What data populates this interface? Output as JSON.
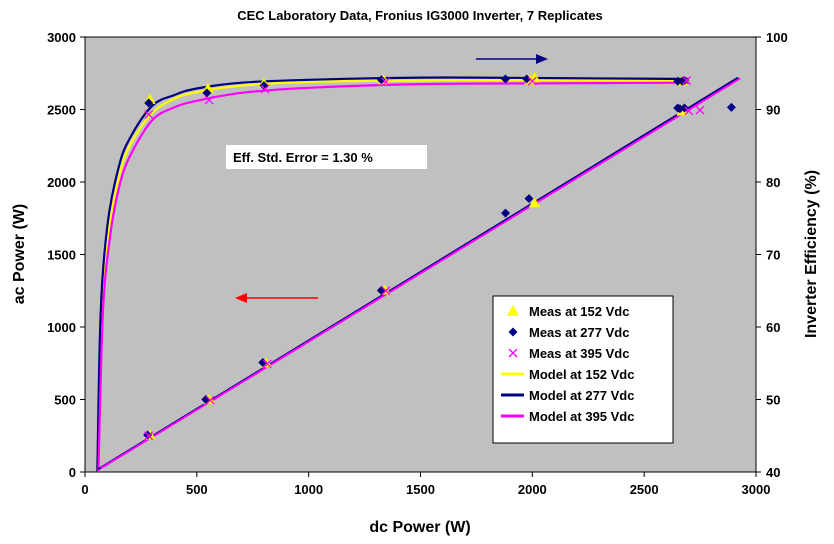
{
  "chart_data": {
    "type": "scatter",
    "title": "CEC Laboratory Data, Fronius IG3000 Inverter, 7 Replicates",
    "xlabel": "dc Power (W)",
    "ylabel": "ac Power (W)",
    "y2label": "Inverter Efficiency (%)",
    "xlim": [
      0,
      3000
    ],
    "ylim": [
      0,
      3000
    ],
    "y2lim": [
      40,
      100
    ],
    "xticks": [
      "0",
      "500",
      "1000",
      "1500",
      "2000",
      "2500",
      "3000"
    ],
    "yticks": [
      "0",
      "500",
      "1000",
      "1500",
      "2000",
      "2500",
      "3000"
    ],
    "y2ticks": [
      "40",
      "50",
      "60",
      "70",
      "80",
      "90",
      "100"
    ],
    "grid": false,
    "background": "#c0c0c0",
    "annotation": "Eff. Std. Error = 1.30 %",
    "legend_position": "bottom-right",
    "series": [
      {
        "name": "Meas at 152 Vdc",
        "kind": "marker",
        "marker": "triangle",
        "color": "#ffff00",
        "ac_power": [
          [
            290,
            255
          ],
          [
            555,
            500
          ],
          [
            810,
            752
          ],
          [
            1340,
            1255
          ],
          [
            2010,
            1855
          ],
          [
            2670,
            2490
          ]
        ],
        "efficiency": [
          [
            290,
            91.4
          ],
          [
            550,
            92.9
          ],
          [
            800,
            93.6
          ],
          [
            1335,
            94.1
          ],
          [
            1990,
            94.1
          ],
          [
            2010,
            94.4
          ],
          [
            2670,
            93.9
          ]
        ]
      },
      {
        "name": "Meas at 277 Vdc",
        "kind": "marker",
        "marker": "diamond",
        "color": "#000080",
        "ac_power": [
          [
            280,
            255
          ],
          [
            540,
            500
          ],
          [
            795,
            755
          ],
          [
            1325,
            1252
          ],
          [
            1880,
            1785
          ],
          [
            1985,
            1885
          ],
          [
            2650,
            2510
          ],
          [
            2660,
            2505
          ],
          [
            2680,
            2510
          ],
          [
            2890,
            2515
          ]
        ],
        "efficiency": [
          [
            285,
            90.9
          ],
          [
            545,
            92.3
          ],
          [
            800,
            93.3
          ],
          [
            1325,
            94.1
          ],
          [
            1880,
            94.2
          ],
          [
            1975,
            94.2
          ],
          [
            2650,
            93.9
          ],
          [
            2670,
            93.9
          ],
          [
            2680,
            94.0
          ]
        ]
      },
      {
        "name": "Meas at 395 Vdc",
        "kind": "marker",
        "marker": "x",
        "color": "#ff00ff",
        "ac_power": [
          [
            285,
            250
          ],
          [
            560,
            495
          ],
          [
            815,
            745
          ],
          [
            1345,
            1250
          ],
          [
            2700,
            2490
          ],
          [
            2750,
            2495
          ]
        ],
        "efficiency": [
          [
            285,
            89.3
          ],
          [
            555,
            91.3
          ],
          [
            805,
            92.8
          ],
          [
            1345,
            93.8
          ],
          [
            2000,
            93.9
          ],
          [
            2690,
            94.0
          ]
        ]
      },
      {
        "name": "Model at 152 Vdc",
        "kind": "line",
        "color": "#ffff00",
        "efficiency": [
          [
            55,
            40
          ],
          [
            70,
            60
          ],
          [
            100,
            72
          ],
          [
            150,
            80.5
          ],
          [
            200,
            85
          ],
          [
            300,
            89.5
          ],
          [
            400,
            91.5
          ],
          [
            500,
            92.4
          ],
          [
            700,
            93.3
          ],
          [
            1000,
            93.8
          ],
          [
            1500,
            94.0
          ],
          [
            2000,
            94.05
          ],
          [
            2700,
            94.0
          ]
        ]
      },
      {
        "name": "Model at 277 Vdc",
        "kind": "line",
        "color": "#000080",
        "ac_power": [
          [
            60,
            20
          ],
          [
            2920,
            2720
          ]
        ],
        "efficiency": [
          [
            55,
            40
          ],
          [
            70,
            62
          ],
          [
            100,
            74
          ],
          [
            150,
            82
          ],
          [
            200,
            86
          ],
          [
            300,
            90.5
          ],
          [
            400,
            92
          ],
          [
            500,
            92.9
          ],
          [
            700,
            93.7
          ],
          [
            1000,
            94.1
          ],
          [
            1500,
            94.4
          ],
          [
            2000,
            94.35
          ],
          [
            2700,
            94.2
          ]
        ]
      },
      {
        "name": "Model at 395 Vdc",
        "kind": "line",
        "color": "#ff00ff",
        "ac_power": [
          [
            70,
            25
          ],
          [
            2930,
            2715
          ]
        ],
        "efficiency": [
          [
            60,
            40
          ],
          [
            80,
            62
          ],
          [
            110,
            72
          ],
          [
            150,
            79
          ],
          [
            200,
            83.5
          ],
          [
            300,
            88.5
          ],
          [
            400,
            90.3
          ],
          [
            500,
            91.2
          ],
          [
            700,
            92.3
          ],
          [
            1000,
            93
          ],
          [
            1500,
            93.5
          ],
          [
            2000,
            93.6
          ],
          [
            2700,
            93.7
          ]
        ]
      }
    ]
  }
}
